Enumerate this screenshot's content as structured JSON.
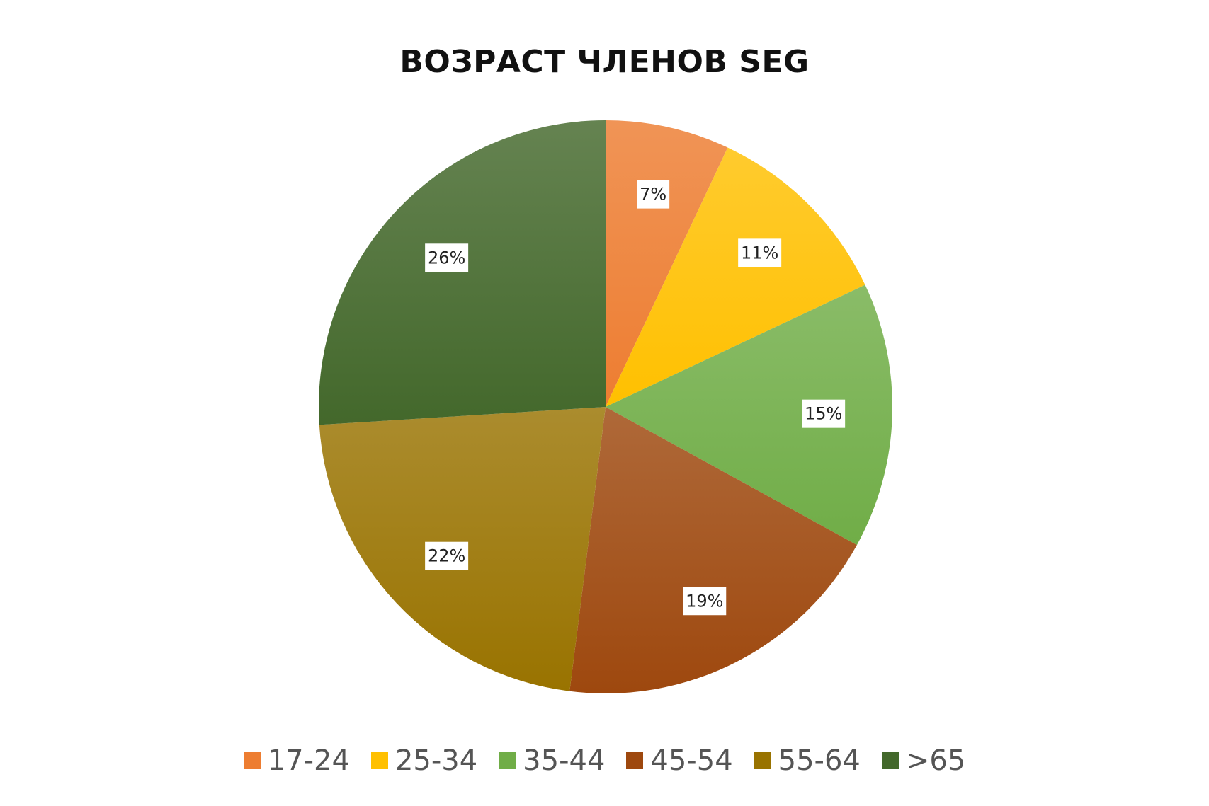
{
  "chart_data": {
    "type": "pie",
    "title": "ВОЗРАСТ ЧЛЕНОВ SEG",
    "categories": [
      "17-24",
      "25-34",
      "35-44",
      "45-54",
      "55-64",
      ">65"
    ],
    "values": [
      7,
      11,
      15,
      19,
      22,
      26
    ],
    "value_labels": [
      "7%",
      "11%",
      "15%",
      "19%",
      "22%",
      "26%"
    ],
    "colors": [
      "#ED7D31",
      "#FFC000",
      "#70AD47",
      "#9E480E",
      "#997300",
      "#43682B"
    ],
    "legend_position": "bottom",
    "start_angle": "12 o'clock",
    "direction": "clockwise"
  }
}
